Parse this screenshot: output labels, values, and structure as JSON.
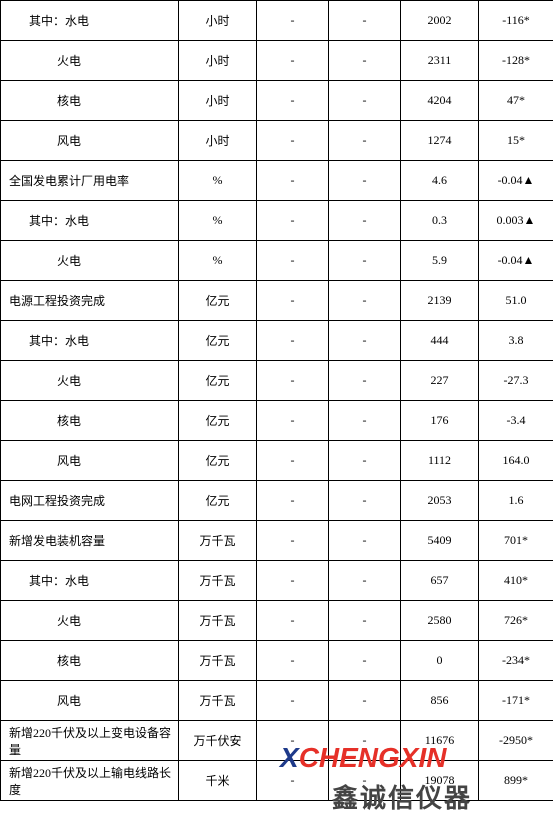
{
  "table": {
    "rows": [
      {
        "label": "其中：水电",
        "indent": 1,
        "unit": "小时",
        "col2": "-",
        "col3": "-",
        "val1": "2002",
        "val2": "-116*"
      },
      {
        "label": "火电",
        "indent": 2,
        "unit": "小时",
        "col2": "-",
        "col3": "-",
        "val1": "2311",
        "val2": "-128*"
      },
      {
        "label": "核电",
        "indent": 2,
        "unit": "小时",
        "col2": "-",
        "col3": "-",
        "val1": "4204",
        "val2": "47*"
      },
      {
        "label": "风电",
        "indent": 2,
        "unit": "小时",
        "col2": "-",
        "col3": "-",
        "val1": "1274",
        "val2": "15*"
      },
      {
        "label": "全国发电累计厂用电率",
        "indent": 0,
        "unit": "%",
        "col2": "-",
        "col3": "-",
        "val1": "4.6",
        "val2": "-0.04▲"
      },
      {
        "label": "其中：水电",
        "indent": 1,
        "unit": "%",
        "col2": "-",
        "col3": "-",
        "val1": "0.3",
        "val2": "0.003▲"
      },
      {
        "label": "火电",
        "indent": 2,
        "unit": "%",
        "col2": "-",
        "col3": "-",
        "val1": "5.9",
        "val2": "-0.04▲"
      },
      {
        "label": "电源工程投资完成",
        "indent": 0,
        "unit": "亿元",
        "col2": "-",
        "col3": "-",
        "val1": "2139",
        "val2": "51.0"
      },
      {
        "label": "其中：水电",
        "indent": 1,
        "unit": "亿元",
        "col2": "-",
        "col3": "-",
        "val1": "444",
        "val2": "3.8"
      },
      {
        "label": "火电",
        "indent": 2,
        "unit": "亿元",
        "col2": "-",
        "col3": "-",
        "val1": "227",
        "val2": "-27.3"
      },
      {
        "label": "核电",
        "indent": 2,
        "unit": "亿元",
        "col2": "-",
        "col3": "-",
        "val1": "176",
        "val2": "-3.4"
      },
      {
        "label": "风电",
        "indent": 2,
        "unit": "亿元",
        "col2": "-",
        "col3": "-",
        "val1": "1112",
        "val2": "164.0"
      },
      {
        "label": "电网工程投资完成",
        "indent": 0,
        "unit": "亿元",
        "col2": "-",
        "col3": "-",
        "val1": "2053",
        "val2": "1.6"
      },
      {
        "label": "新增发电装机容量",
        "indent": 0,
        "unit": "万千瓦",
        "col2": "-",
        "col3": "-",
        "val1": "5409",
        "val2": "701*"
      },
      {
        "label": "其中：水电",
        "indent": 1,
        "unit": "万千瓦",
        "col2": "-",
        "col3": "-",
        "val1": "657",
        "val2": "410*"
      },
      {
        "label": "火电",
        "indent": 2,
        "unit": "万千瓦",
        "col2": "-",
        "col3": "-",
        "val1": "2580",
        "val2": "726*"
      },
      {
        "label": "核电",
        "indent": 2,
        "unit": "万千瓦",
        "col2": "-",
        "col3": "-",
        "val1": "0",
        "val2": "-234*"
      },
      {
        "label": "风电",
        "indent": 2,
        "unit": "万千瓦",
        "col2": "-",
        "col3": "-",
        "val1": "856",
        "val2": "-171*"
      },
      {
        "label": "新增220千伏及以上变电设备容量",
        "indent": 0,
        "unit": "万千伏安",
        "col2": "-",
        "col3": "-",
        "val1": "11676",
        "val2": "-2950*"
      },
      {
        "label": "新增220千伏及以上输电线路长度",
        "indent": 0,
        "unit": "千米",
        "col2": "-",
        "col3": "-",
        "val1": "19078",
        "val2": "899*"
      }
    ]
  },
  "watermark": {
    "line1_x": "X",
    "line1_rest": "CHENGXIN",
    "line2": "鑫诚信仪器"
  },
  "colors": {
    "border": "#000000",
    "text": "#000000",
    "background": "#ffffff",
    "wm_red": "#e63028",
    "wm_blue": "#1e3a8a",
    "wm_grey": "#444444"
  }
}
